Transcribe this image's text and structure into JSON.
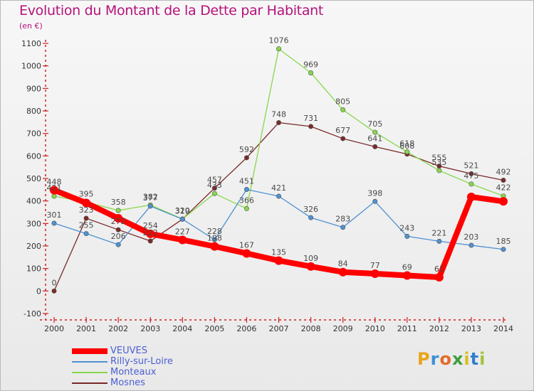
{
  "title": "Evolution du Montant de la Dette par Habitant",
  "unit": "(en €)",
  "logo": {
    "text": "Proxiti",
    "letter_colors": [
      "#e8a418",
      "#3c8fd8",
      "#e36b2a",
      "#3c9f3c",
      "#d8c020",
      "#2f7fd0",
      "#a4c33c"
    ]
  },
  "chart_data": {
    "type": "line",
    "title": "Evolution du Montant de la Dette par Habitant",
    "ylabel": "(en €)",
    "xlabel": "",
    "ylim": [
      -100,
      1100
    ],
    "yticks": [
      -100,
      0,
      100,
      200,
      300,
      400,
      500,
      600,
      700,
      800,
      900,
      1000,
      1100
    ],
    "grid": false,
    "legend_position": "bottom-left",
    "x": [
      "2000",
      "2001",
      "2002",
      "2003",
      "2004",
      "2005",
      "2006",
      "2007",
      "2008",
      "2009",
      "2010",
      "2011",
      "2012",
      "2013",
      "2014"
    ],
    "series": [
      {
        "name": "VEUVES",
        "color": "#ff0000",
        "values": [
          448,
          391,
          323,
          254,
          227,
          198,
          167,
          135,
          109,
          84,
          77,
          69,
          61,
          418,
          398
        ],
        "labels": [
          "448",
          "",
          "",
          "254",
          "227",
          "198",
          "167",
          "135",
          "109",
          "84",
          "77",
          "69",
          "61",
          "",
          ""
        ]
      },
      {
        "name": "Rilly-sur-Loire",
        "color": "#4f91d2",
        "values": [
          301,
          255,
          206,
          377,
          319,
          228,
          451,
          421,
          326,
          283,
          398,
          243,
          221,
          203,
          185
        ],
        "labels": [
          "301",
          "255",
          "206",
          "377",
          "",
          "228",
          "451",
          "421",
          "326",
          "283",
          "398",
          "243",
          "221",
          "203",
          "185"
        ]
      },
      {
        "name": "Monteaux",
        "color": "#86d84a",
        "values": [
          421,
          395,
          358,
          382,
          320,
          433,
          366,
          1076,
          969,
          805,
          705,
          618,
          535,
          475,
          422
        ],
        "labels": [
          "421",
          "395",
          "358",
          "382",
          "320",
          "433",
          "366",
          "1076",
          "969",
          "805",
          "705",
          "618",
          "535",
          "475",
          "422"
        ]
      },
      {
        "name": "Mosnes",
        "color": "#7a2a2a",
        "values": [
          0,
          323,
          272,
          222,
          319,
          457,
          592,
          748,
          731,
          677,
          641,
          608,
          555,
          521,
          492
        ],
        "labels": [
          "0",
          "323",
          "272",
          "222",
          "319",
          "457",
          "592",
          "748",
          "731",
          "677",
          "641",
          "608",
          "555",
          "521",
          "492"
        ]
      }
    ]
  }
}
